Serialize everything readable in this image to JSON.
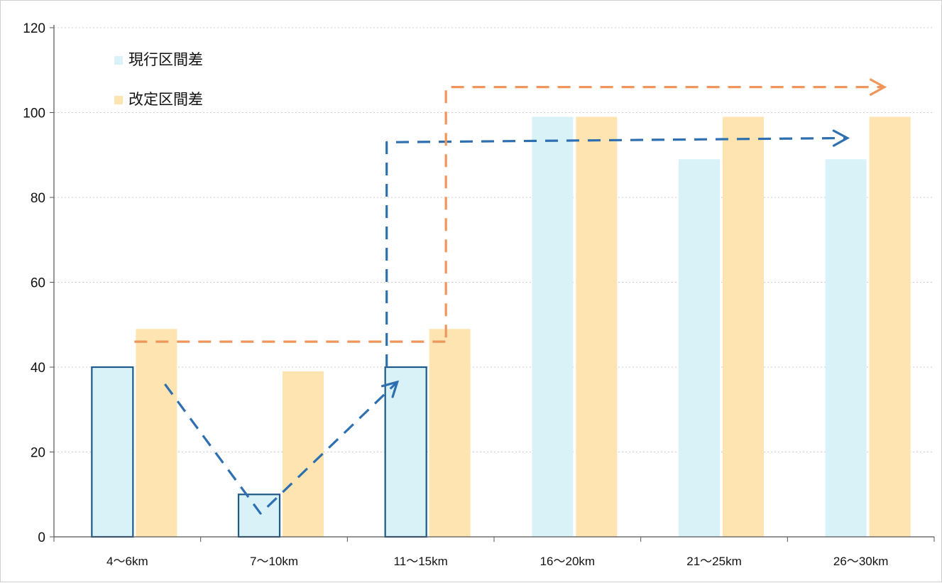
{
  "chart_data": {
    "type": "bar",
    "categories": [
      "4～6km",
      "7～10km",
      "11～15km",
      "16～20km",
      "21～25km",
      "26～30km"
    ],
    "series": [
      {
        "name": "現行区間差",
        "values": [
          40,
          10,
          40,
          99,
          89,
          89
        ],
        "color": "#d9f2f8"
      },
      {
        "name": "改定区間差",
        "values": [
          49,
          39,
          49,
          99,
          99,
          99
        ],
        "color": "#fde4b0"
      }
    ],
    "ylim": [
      0,
      120
    ],
    "yticks": [
      0,
      20,
      40,
      60,
      80,
      100,
      120
    ],
    "grid": true,
    "legend_position": "top-left",
    "outlined_bars": [
      [
        0,
        0
      ],
      [
        0,
        1
      ],
      [
        0,
        2
      ]
    ],
    "annotations": [
      {
        "kind": "dashed-arrow",
        "color": "#2e6fb0",
        "points": [
          [
            0,
            0.37,
            36
          ],
          [
            1,
            -0.25,
            5.5
          ],
          [
            2,
            -0.37,
            36.5
          ]
        ]
      },
      {
        "kind": "dashed-arrow",
        "color": "#2e6fb0",
        "points": [
          [
            2,
            -0.5,
            40
          ],
          [
            2,
            -0.5,
            93
          ],
          [
            5,
            -0.25,
            94
          ]
        ]
      },
      {
        "kind": "dashed-line",
        "color": "#f0965a",
        "points": [
          [
            0,
            0.0,
            46
          ],
          [
            2,
            0.22,
            46
          ]
        ]
      },
      {
        "kind": "dashed-arrow",
        "color": "#f0965a",
        "points": [
          [
            2,
            0.22,
            47
          ],
          [
            2,
            0.22,
            106
          ],
          [
            5,
            0.2,
            106
          ]
        ]
      }
    ],
    "colors": {
      "outline": "#1d5a86",
      "axis": "#555555",
      "grid": "#cccccc"
    }
  }
}
